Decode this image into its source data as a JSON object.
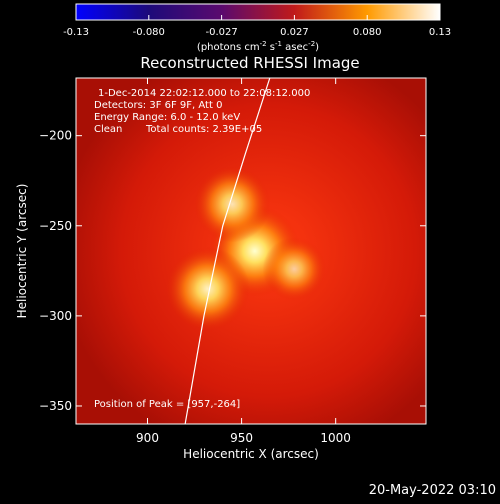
{
  "chart_data": {
    "type": "heatmap",
    "title": "Reconstructed RHESSI Image",
    "xlabel": "Heliocentric X (arcsec)",
    "ylabel": "Heliocentric Y (arcsec)",
    "xlim": [
      862,
      1048
    ],
    "ylim": [
      -360,
      -168
    ],
    "x_ticks": [
      900,
      950,
      1000
    ],
    "y_ticks": [
      -200,
      -250,
      -300,
      -350
    ],
    "colorbar": {
      "colormap": "red-temperature",
      "ticks": [
        "-0.13",
        "-0.080",
        "-0.027",
        "0.027",
        "0.080",
        "0.13"
      ],
      "unit_label": "(photons cm",
      "unit_sup1": "-2",
      "unit_mid": " s",
      "unit_sup2": "-1",
      "unit_mid2": " asec",
      "unit_sup3": "-2",
      "unit_end": ")"
    },
    "annotations": {
      "time_range": "1-Dec-2014 22:02:12.000 to 22:08:12.000",
      "detectors": "Detectors: 3F 6F 9F, Att 0",
      "energy": "Energy Range: 6.0 - 12.0 keV",
      "method": "Clean",
      "counts": "Total counts: 2.39E+05",
      "peak": "Position of Peak = [957,-264]"
    },
    "sources": [
      {
        "x": 957,
        "y": -264,
        "intensity": 1.0
      },
      {
        "x": 932,
        "y": -285,
        "intensity": 0.85
      },
      {
        "x": 945,
        "y": -238,
        "intensity": 0.7
      },
      {
        "x": 978,
        "y": -274,
        "intensity": 0.45
      }
    ],
    "limb": [
      [
        920,
        -360
      ],
      [
        930,
        -300
      ],
      [
        940,
        -250
      ],
      [
        952,
        -210
      ],
      [
        965,
        -168
      ]
    ],
    "timestamp": "20-May-2022 03:10"
  }
}
